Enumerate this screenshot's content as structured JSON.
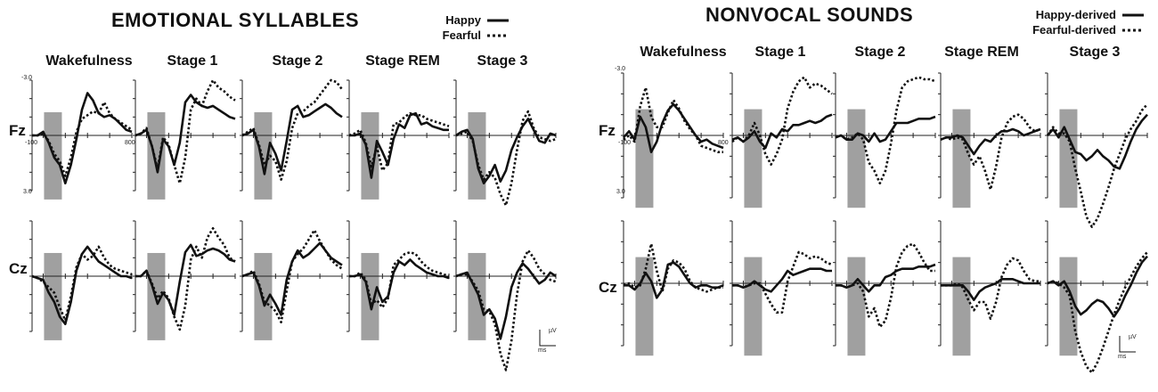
{
  "chart_data": [
    {
      "type": "line",
      "title": "EMOTIONAL SYLLABLES",
      "legend": {
        "placement": "top-right",
        "entries": [
          {
            "label": "Happy",
            "style": "solid"
          },
          {
            "label": "Fearful",
            "style": "dotted"
          }
        ]
      },
      "stages": [
        "Wakefulness",
        "Stage 1",
        "Stage 2",
        "Stage REM",
        "Stage 3"
      ],
      "rows": [
        "Fz",
        "Cz"
      ],
      "tick_labels": {
        "y_top": "-3.0",
        "y_bottom": "3.0",
        "x_start": "-100",
        "x_end": "800"
      },
      "scale_bar": {
        "x_unit": "ms",
        "y_unit": "µV"
      },
      "xlim": [
        -100,
        800
      ],
      "ylim": [
        -3.0,
        3.0
      ],
      "x": [
        -100,
        -50,
        0,
        50,
        100,
        150,
        200,
        250,
        300,
        350,
        400,
        450,
        500,
        550,
        600,
        650,
        700,
        750,
        800
      ],
      "panels": [
        {
          "stage": "Wakefulness",
          "row": "Fz",
          "happy": [
            0,
            0,
            -0.2,
            0.4,
            1.2,
            1.6,
            2.6,
            1.6,
            0.2,
            -1.4,
            -2.3,
            -1.9,
            -1.2,
            -1.0,
            -1.1,
            -0.9,
            -0.6,
            -0.3,
            -0.2
          ],
          "fearful": [
            0,
            0,
            -0.1,
            0.3,
            1.0,
            1.4,
            2.2,
            1.2,
            -0.2,
            -0.9,
            -1.1,
            -1.3,
            -1.2,
            -1.8,
            -1.2,
            -0.9,
            -0.7,
            -0.5,
            -0.3
          ]
        },
        {
          "stage": "Stage 1",
          "row": "Fz",
          "happy": [
            0,
            -0.1,
            -0.3,
            0.6,
            2.0,
            0.2,
            0.6,
            1.6,
            0.4,
            -1.8,
            -2.2,
            -1.8,
            -1.6,
            -1.5,
            -1.6,
            -1.4,
            -1.2,
            -1.0,
            -0.9
          ],
          "fearful": [
            0,
            -0.1,
            -0.4,
            0.6,
            1.8,
            0.1,
            0.5,
            1.6,
            2.6,
            1.2,
            -1.4,
            -2.0,
            -1.6,
            -2.4,
            -3.0,
            -2.6,
            -2.4,
            -2.1,
            -1.9
          ]
        },
        {
          "stage": "Stage 2",
          "row": "Fz",
          "happy": [
            0,
            -0.1,
            -0.3,
            0.6,
            2.1,
            0.4,
            1.0,
            1.9,
            0.3,
            -1.4,
            -1.6,
            -1.0,
            -1.1,
            -1.3,
            -1.5,
            -1.7,
            -1.5,
            -1.2,
            -1.0
          ],
          "fearful": [
            0,
            -0.2,
            -0.4,
            0.5,
            1.6,
            1.1,
            1.4,
            2.4,
            1.4,
            -0.4,
            -1.2,
            -1.3,
            -1.6,
            -1.8,
            -2.2,
            -2.6,
            -3.0,
            -2.9,
            -2.5
          ]
        },
        {
          "stage": "Stage REM",
          "row": "Fz",
          "happy": [
            0,
            0,
            -0.1,
            0.5,
            2.3,
            0.3,
            0.9,
            1.6,
            0.2,
            -0.6,
            -0.4,
            -1.1,
            -1.2,
            -0.6,
            -0.7,
            -0.5,
            -0.4,
            -0.3,
            -0.3
          ],
          "fearful": [
            0,
            -0.1,
            -0.3,
            0.4,
            1.7,
            0.6,
            1.9,
            1.5,
            -0.6,
            -0.7,
            -1.0,
            -1.2,
            -1.1,
            -1.1,
            -0.9,
            -0.8,
            -0.7,
            -0.6,
            -0.5
          ]
        },
        {
          "stage": "Stage 3",
          "row": "Fz",
          "happy": [
            0,
            -0.2,
            -0.3,
            0.2,
            1.8,
            2.6,
            2.2,
            1.6,
            2.5,
            1.9,
            0.8,
            0.1,
            -0.5,
            -0.9,
            -0.3,
            0.3,
            0.4,
            -0.1,
            0.0
          ],
          "fearful": [
            0,
            -0.1,
            -0.2,
            0.3,
            1.6,
            2.4,
            2.0,
            2.3,
            3.2,
            3.8,
            2.6,
            0.8,
            -0.8,
            -1.3,
            -0.4,
            0.1,
            0.2,
            0.3,
            0.2
          ]
        },
        {
          "stage": "Wakefulness",
          "row": "Cz",
          "happy": [
            0,
            0.1,
            0.2,
            0.9,
            1.4,
            2.2,
            2.6,
            1.4,
            -0.3,
            -1.2,
            -1.6,
            -1.2,
            -0.8,
            -0.6,
            -0.4,
            -0.2,
            0.0,
            0.0,
            0.1
          ],
          "fearful": [
            0,
            0.1,
            0.3,
            0.6,
            0.9,
            1.7,
            2.4,
            1.1,
            -0.5,
            -1.2,
            -0.9,
            -1.1,
            -1.6,
            -1.0,
            -0.6,
            -0.4,
            -0.3,
            -0.2,
            -0.1
          ]
        },
        {
          "stage": "Stage 1",
          "row": "Cz",
          "happy": [
            0,
            0,
            -0.3,
            0.5,
            1.5,
            0.9,
            1.3,
            2.1,
            0.3,
            -1.3,
            -1.7,
            -1.1,
            -1.2,
            -1.4,
            -1.5,
            -1.4,
            -1.2,
            -0.9,
            -0.8
          ],
          "fearful": [
            0,
            0,
            -0.3,
            0.4,
            1.2,
            0.8,
            1.2,
            2.2,
            2.9,
            1.6,
            -0.9,
            -1.6,
            -1.0,
            -2.1,
            -2.6,
            -2.1,
            -1.7,
            -1.0,
            -0.8
          ]
        },
        {
          "stage": "Stage 2",
          "row": "Cz",
          "happy": [
            0,
            -0.1,
            -0.2,
            0.5,
            1.6,
            1.0,
            1.5,
            2.1,
            0.2,
            -0.8,
            -1.4,
            -1.0,
            -1.2,
            -1.5,
            -1.8,
            -1.4,
            -1.0,
            -0.8,
            -0.6
          ],
          "fearful": [
            0,
            -0.1,
            -0.3,
            0.4,
            1.4,
            1.6,
            1.9,
            2.5,
            0.8,
            -0.8,
            -1.2,
            -1.5,
            -2.0,
            -2.5,
            -1.9,
            -1.4,
            -0.9,
            -0.6,
            -0.4
          ]
        },
        {
          "stage": "Stage REM",
          "row": "Cz",
          "happy": [
            0,
            0,
            -0.1,
            0.3,
            1.8,
            0.6,
            1.4,
            1.1,
            -0.2,
            -0.8,
            -0.6,
            -0.9,
            -0.6,
            -0.4,
            -0.2,
            -0.1,
            0.0,
            0.0,
            0.1
          ],
          "fearful": [
            0,
            0,
            -0.2,
            0.2,
            1.5,
            1.3,
            1.7,
            1.2,
            -0.6,
            -0.9,
            -1.2,
            -1.3,
            -1.2,
            -0.8,
            -0.5,
            -0.3,
            -0.2,
            -0.1,
            0.0
          ]
        },
        {
          "stage": "Stage 3",
          "row": "Cz",
          "happy": [
            0,
            -0.1,
            -0.2,
            0.4,
            1.0,
            2.1,
            1.8,
            2.3,
            3.4,
            2.2,
            0.6,
            -0.2,
            -0.7,
            -0.4,
            0.0,
            0.4,
            0.2,
            -0.2,
            0.0
          ],
          "fearful": [
            0,
            -0.1,
            -0.1,
            0.3,
            0.8,
            1.8,
            1.9,
            2.6,
            4.2,
            5.1,
            3.5,
            1.0,
            -0.8,
            -1.4,
            -1.0,
            -0.4,
            -0.1,
            0.2,
            0.3
          ]
        }
      ]
    },
    {
      "type": "line",
      "title": "NONVOCAL SOUNDS",
      "legend": {
        "placement": "top-right",
        "entries": [
          {
            "label": "Happy-derived",
            "style": "solid"
          },
          {
            "label": "Fearful-derived",
            "style": "dotted"
          }
        ]
      },
      "stages": [
        "Wakefulness",
        "Stage 1",
        "Stage 2",
        "Stage REM",
        "Stage 3"
      ],
      "rows": [
        "Fz",
        "Cz"
      ],
      "tick_labels": {
        "y_top": "-3.0",
        "y_bottom": "3.0",
        "x_start": "-100",
        "x_end": "800"
      },
      "scale_bar": {
        "x_unit": "ms",
        "y_unit": "µV"
      },
      "xlim": [
        -100,
        800
      ],
      "ylim": [
        -3.0,
        3.0
      ],
      "x": [
        -100,
        -50,
        0,
        50,
        100,
        150,
        200,
        250,
        300,
        350,
        400,
        450,
        500,
        550,
        600,
        650,
        700,
        750,
        800
      ],
      "panels": [
        {
          "stage": "Wakefulness",
          "row": "Fz",
          "happy": [
            0.1,
            -0.2,
            0.2,
            -0.9,
            -0.4,
            0.8,
            0.3,
            -0.6,
            -1.2,
            -1.5,
            -1.2,
            -0.8,
            -0.4,
            0.0,
            0.3,
            0.2,
            0.4,
            0.5,
            0.6
          ],
          "fearful": [
            0.2,
            0.0,
            0.3,
            -1.4,
            -2.3,
            -0.9,
            -0.4,
            -0.4,
            -1.1,
            -1.7,
            -1.3,
            -0.7,
            -0.3,
            0.0,
            0.5,
            0.6,
            0.7,
            0.8,
            0.8
          ]
        },
        {
          "stage": "Stage 1",
          "row": "Fz",
          "happy": [
            0.2,
            0.1,
            0.3,
            0.1,
            -0.2,
            0.3,
            0.6,
            -0.1,
            0.1,
            -0.3,
            -0.2,
            -0.5,
            -0.5,
            -0.6,
            -0.7,
            -0.6,
            -0.7,
            -0.9,
            -1.0
          ],
          "fearful": [
            0.3,
            0.1,
            0.3,
            0.0,
            -0.6,
            0.0,
            0.9,
            1.4,
            0.9,
            0.2,
            -1.3,
            -2.1,
            -2.6,
            -2.8,
            -2.3,
            -2.5,
            -2.4,
            -2.2,
            -2.0
          ]
        },
        {
          "stage": "Stage 2",
          "row": "Fz",
          "happy": [
            0.1,
            0.0,
            0.2,
            0.2,
            -0.1,
            0.0,
            0.3,
            -0.1,
            0.3,
            0.2,
            -0.2,
            -0.6,
            -0.6,
            -0.6,
            -0.7,
            -0.8,
            -0.8,
            -0.8,
            -0.9
          ],
          "fearful": [
            0.1,
            0.0,
            0.2,
            0.1,
            -0.1,
            0.2,
            1.3,
            1.7,
            2.3,
            1.7,
            0.4,
            -1.2,
            -2.3,
            -2.6,
            -2.7,
            -2.8,
            -2.7,
            -2.7,
            -2.6
          ]
        },
        {
          "stage": "Stage REM",
          "row": "Fz",
          "happy": [
            0.2,
            0.1,
            0.1,
            0.0,
            0.1,
            0.5,
            0.9,
            0.5,
            0.2,
            0.3,
            0.0,
            -0.2,
            -0.2,
            -0.3,
            -0.2,
            0.0,
            -0.1,
            -0.2,
            -0.3
          ],
          "fearful": [
            0.2,
            0.1,
            0.2,
            0.1,
            0.2,
            0.9,
            1.4,
            1.0,
            1.7,
            2.6,
            1.5,
            0.1,
            -0.6,
            -0.9,
            -1.0,
            -0.8,
            -0.4,
            -0.2,
            -0.3
          ]
        },
        {
          "stage": "Stage 3",
          "row": "Fz",
          "happy": [
            0.0,
            -0.3,
            0.1,
            -0.4,
            0.2,
            0.8,
            0.9,
            1.2,
            1.0,
            0.7,
            1.0,
            1.2,
            1.5,
            1.6,
            1.0,
            0.3,
            -0.3,
            -0.7,
            -1.0
          ],
          "fearful": [
            0.0,
            -0.4,
            -0.1,
            -0.1,
            0.3,
            1.6,
            2.7,
            3.9,
            4.4,
            4.0,
            3.3,
            2.5,
            1.6,
            0.9,
            0.2,
            -0.3,
            -0.7,
            -1.2,
            -1.5
          ]
        },
        {
          "stage": "Wakefulness",
          "row": "Cz",
          "happy": [
            0.1,
            0.1,
            0.3,
            0.0,
            -0.5,
            -0.1,
            0.7,
            0.3,
            -0.9,
            -1.0,
            -0.8,
            -0.4,
            0.0,
            0.2,
            0.1,
            0.1,
            0.2,
            0.2,
            0.1
          ],
          "fearful": [
            0.1,
            0.0,
            0.2,
            0.1,
            -0.7,
            -1.9,
            -0.6,
            0.4,
            -0.7,
            -1.1,
            -1.0,
            -0.7,
            -0.1,
            0.2,
            0.3,
            0.4,
            0.3,
            0.2,
            0.2
          ]
        },
        {
          "stage": "Stage 1",
          "row": "Cz",
          "happy": [
            0.1,
            0.1,
            0.2,
            0.1,
            -0.1,
            0.1,
            0.3,
            0.4,
            0.1,
            -0.2,
            -0.6,
            -0.4,
            -0.5,
            -0.6,
            -0.7,
            -0.7,
            -0.7,
            -0.6,
            -0.6
          ],
          "fearful": [
            0.1,
            0.1,
            0.2,
            0.1,
            0.0,
            0.0,
            0.5,
            1.0,
            1.4,
            1.4,
            -0.1,
            -0.8,
            -1.5,
            -1.4,
            -1.2,
            -1.3,
            -1.2,
            -1.0,
            -0.9
          ]
        },
        {
          "stage": "Stage 2",
          "row": "Cz",
          "happy": [
            0.1,
            0.1,
            0.2,
            0.1,
            -0.2,
            0.1,
            0.4,
            0.1,
            0.1,
            -0.3,
            -0.4,
            -0.6,
            -0.7,
            -0.7,
            -0.7,
            -0.8,
            -0.8,
            -0.8,
            -0.9
          ],
          "fearful": [
            0.1,
            0.1,
            0.2,
            0.1,
            0.0,
            0.4,
            1.6,
            1.2,
            2.1,
            1.8,
            0.7,
            -0.8,
            -1.5,
            -1.8,
            -1.9,
            -1.5,
            -1.0,
            -0.6,
            -0.6
          ]
        },
        {
          "stage": "Stage REM",
          "row": "Cz",
          "happy": [
            0.1,
            0.1,
            0.1,
            0.1,
            0.1,
            0.4,
            0.8,
            0.4,
            0.2,
            0.1,
            0.0,
            -0.2,
            -0.2,
            -0.2,
            -0.1,
            0.0,
            0.0,
            0.0,
            0.0
          ],
          "fearful": [
            0.1,
            0.1,
            0.1,
            0.0,
            0.2,
            0.8,
            1.3,
            0.9,
            0.9,
            1.7,
            0.9,
            -0.3,
            -0.9,
            -1.2,
            -1.1,
            -0.6,
            -0.2,
            -0.1,
            -0.1
          ]
        },
        {
          "stage": "Stage 3",
          "row": "Cz",
          "happy": [
            0.0,
            -0.1,
            0.1,
            -0.1,
            0.4,
            1.1,
            1.5,
            1.3,
            1.0,
            0.8,
            0.9,
            1.2,
            1.6,
            1.2,
            0.6,
            0.1,
            -0.5,
            -1.0,
            -1.3
          ],
          "fearful": [
            0.0,
            -0.1,
            0.0,
            0.2,
            0.6,
            2.3,
            3.3,
            4.0,
            4.3,
            3.8,
            3.1,
            2.3,
            1.5,
            0.8,
            0.2,
            -0.3,
            -0.8,
            -1.2,
            -1.5
          ]
        }
      ]
    }
  ]
}
